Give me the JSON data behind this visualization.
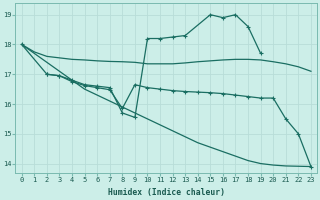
{
  "xlabel": "Humidex (Indice chaleur)",
  "bg_color": "#cceee8",
  "line_color": "#1a6e62",
  "grid_color": "#b8ddd8",
  "xlim": [
    -0.5,
    23.5
  ],
  "ylim": [
    13.7,
    19.4
  ],
  "yticks": [
    14,
    15,
    16,
    17,
    18,
    19
  ],
  "xticks": [
    0,
    1,
    2,
    3,
    4,
    5,
    6,
    7,
    8,
    9,
    10,
    11,
    12,
    13,
    14,
    15,
    16,
    17,
    18,
    19,
    20,
    21,
    22,
    23
  ],
  "line1_x": [
    0,
    1,
    2,
    3,
    4,
    5,
    6,
    7,
    8,
    9,
    10,
    11,
    12,
    13,
    14,
    15,
    16,
    17,
    18,
    19,
    20,
    21,
    22,
    23
  ],
  "line1_y": [
    18.0,
    17.75,
    17.6,
    17.55,
    17.5,
    17.48,
    17.45,
    17.43,
    17.42,
    17.4,
    17.35,
    17.35,
    17.35,
    17.38,
    17.42,
    17.45,
    17.48,
    17.5,
    17.5,
    17.48,
    17.42,
    17.35,
    17.25,
    17.1
  ],
  "line2_x": [
    0,
    2,
    3,
    4,
    5,
    6,
    7,
    8,
    9,
    10,
    11,
    12,
    13,
    15,
    16,
    17,
    18,
    19
  ],
  "line2_y": [
    18.0,
    17.0,
    16.95,
    16.8,
    16.65,
    16.6,
    16.55,
    15.7,
    15.55,
    18.2,
    18.2,
    18.25,
    18.3,
    19.0,
    18.9,
    19.0,
    18.6,
    17.7
  ],
  "line3_x": [
    2,
    3,
    4,
    5,
    6,
    7,
    8,
    9,
    10,
    11,
    12,
    13,
    14,
    15,
    16,
    17,
    18,
    19,
    20,
    21,
    22,
    23
  ],
  "line3_y": [
    17.0,
    16.95,
    16.75,
    16.62,
    16.55,
    16.48,
    15.85,
    16.65,
    16.55,
    16.5,
    16.45,
    16.42,
    16.4,
    16.38,
    16.35,
    16.3,
    16.25,
    16.2,
    16.2,
    15.5,
    15.0,
    13.9
  ],
  "line4_x": [
    0,
    1,
    2,
    3,
    4,
    5,
    6,
    7,
    8,
    9,
    10,
    11,
    12,
    13,
    14,
    15,
    16,
    17,
    18,
    19,
    20,
    21,
    22,
    23
  ],
  "line4_y": [
    18.0,
    17.7,
    17.4,
    17.1,
    16.8,
    16.5,
    16.3,
    16.1,
    15.9,
    15.7,
    15.5,
    15.3,
    15.1,
    14.9,
    14.7,
    14.55,
    14.4,
    14.25,
    14.1,
    14.0,
    13.95,
    13.92,
    13.91,
    13.9
  ]
}
